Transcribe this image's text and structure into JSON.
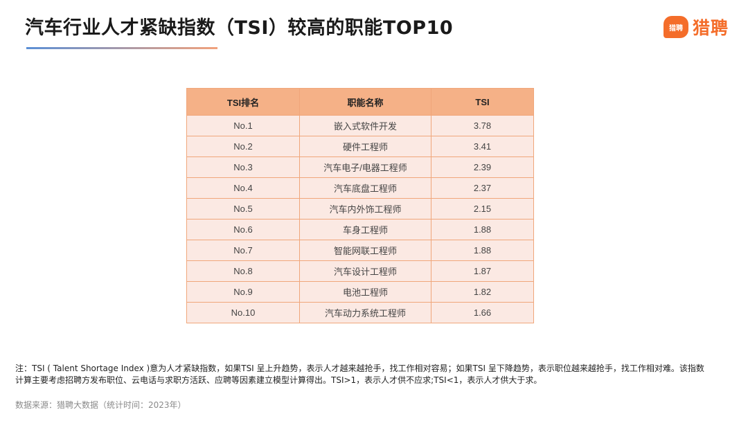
{
  "title": "汽车行业人才紧缺指数（TSI）较高的职能TOP10",
  "logo": {
    "mark_text": "猎聘",
    "text": "猎聘",
    "color": "#f46d2a"
  },
  "table": {
    "headers": {
      "rank": "TSI排名",
      "name": "职能名称",
      "tsi": "TSI"
    },
    "rows": [
      {
        "rank": "No.1",
        "name": "嵌入式软件开发",
        "tsi": "3.78"
      },
      {
        "rank": "No.2",
        "name": "硬件工程师",
        "tsi": "3.41"
      },
      {
        "rank": "No.3",
        "name": "汽车电子/电器工程师",
        "tsi": "2.39"
      },
      {
        "rank": "No.4",
        "name": "汽车底盘工程师",
        "tsi": "2.37"
      },
      {
        "rank": "No.5",
        "name": "汽车内外饰工程师",
        "tsi": "2.15"
      },
      {
        "rank": "No.6",
        "name": "车身工程师",
        "tsi": "1.88"
      },
      {
        "rank": "No.7",
        "name": "智能网联工程师",
        "tsi": "1.88"
      },
      {
        "rank": "No.8",
        "name": "汽车设计工程师",
        "tsi": "1.87"
      },
      {
        "rank": "No.9",
        "name": "电池工程师",
        "tsi": "1.82"
      },
      {
        "rank": "No.10",
        "name": "汽车动力系统工程师",
        "tsi": "1.66"
      }
    ],
    "header_color": "#f5b187",
    "row_color": "#fbe9e3",
    "border_color": "#f0a67a"
  },
  "note": "注：TSI ( Talent Shortage Index )意为人才紧缺指数，如果TSI 呈上升趋势，表示人才越来越抢手，找工作相对容易；如果TSI 呈下降趋势，表示职位越来越抢手，找工作相对难。该指数计算主要考虑招聘方发布职位、云电话与求职方活跃、应聘等因素建立模型计算得出。TSI>1，表示人才供不应求;TSI<1，表示人才供大于求。",
  "source": "数据来源：猎聘大数据（统计时间：2023年）"
}
